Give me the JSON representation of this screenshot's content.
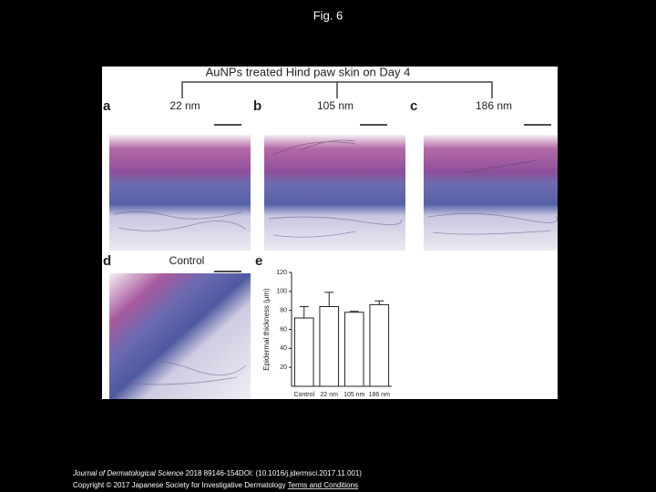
{
  "slide_title": "Fig. 6",
  "figure": {
    "header": "AuNPs treated Hind paw skin on Day 4",
    "panels": [
      {
        "letter": "a",
        "label": "22 nm"
      },
      {
        "letter": "b",
        "label": "105 nm"
      },
      {
        "letter": "c",
        "label": "186 nm"
      },
      {
        "letter": "d",
        "label": "Control"
      }
    ],
    "chart": {
      "letter": "e",
      "type": "bar",
      "ylabel": "Epidermal thickness (μm)",
      "categories": [
        "Control",
        "22 nm",
        "105 nm",
        "186 nm"
      ],
      "values": [
        72,
        84,
        78,
        86
      ],
      "errors": [
        12,
        15,
        1,
        4
      ],
      "ylim": [
        0,
        120
      ],
      "yticks": [
        20,
        40,
        60,
        80,
        100,
        120
      ],
      "color": "#ffffff"
    }
  },
  "footer": {
    "journal": "Journal of Dermatological Science",
    "citation": "2018 89146-154DOI: (10.1016/j.jdermsci.2017.11.001)",
    "copyright": "Copyright © 2017 Japanese Society for Investigative Dermatology",
    "link": "Terms and Conditions"
  }
}
